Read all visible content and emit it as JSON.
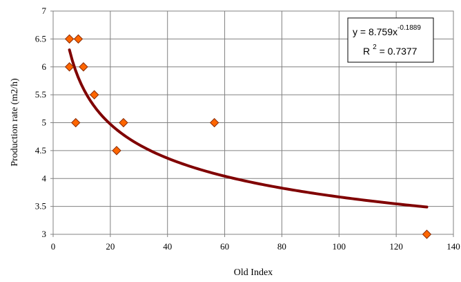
{
  "chart_data": {
    "type": "scatter",
    "xlabel": "Old Index",
    "ylabel": "Production rate (m2/h)",
    "xlim": [
      0,
      140
    ],
    "ylim": [
      3,
      7
    ],
    "xticks": [
      0,
      20,
      40,
      60,
      80,
      100,
      120,
      140
    ],
    "yticks": [
      3,
      3.5,
      4,
      4.5,
      5,
      5.5,
      6,
      6.5,
      7
    ],
    "grid": true,
    "points": [
      {
        "x": 5.7,
        "y": 6.5
      },
      {
        "x": 8.8,
        "y": 6.5
      },
      {
        "x": 5.7,
        "y": 6.0
      },
      {
        "x": 10.6,
        "y": 6.0
      },
      {
        "x": 14.4,
        "y": 5.5
      },
      {
        "x": 7.9,
        "y": 5.0
      },
      {
        "x": 24.6,
        "y": 5.0
      },
      {
        "x": 56.4,
        "y": 5.0
      },
      {
        "x": 22.2,
        "y": 4.5
      },
      {
        "x": 130.7,
        "y": 3.0
      }
    ],
    "marker_color": "#ff6600",
    "marker_stroke": "#8a2b00",
    "trendline": {
      "type": "power",
      "a": 8.759,
      "b": -0.1889,
      "x_range": [
        5.7,
        130.7
      ],
      "color": "#800000"
    },
    "equation": {
      "line1_prefix": "y = 8.759x",
      "line1_exponent": "-0.1889",
      "line2_prefix": "R",
      "line2_exponent": "2",
      "line2_suffix": " = 0.7377"
    }
  }
}
